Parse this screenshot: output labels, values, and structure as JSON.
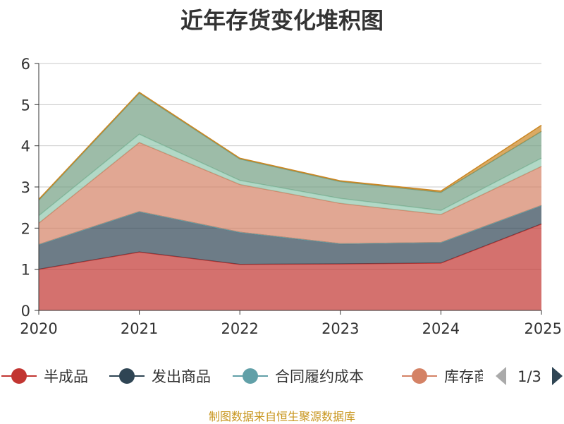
{
  "chart_data": {
    "type": "area",
    "stacked": true,
    "title": "近年存货变化堆积图",
    "xlabel": "",
    "ylabel": "",
    "categories": [
      "2020",
      "2021",
      "2022",
      "2023",
      "2024",
      "2025"
    ],
    "ylim": [
      0,
      6
    ],
    "yticks": [
      "0",
      "1",
      "2",
      "3",
      "4",
      "5",
      "6"
    ],
    "grid": true,
    "legend_position": "bottom",
    "series": [
      {
        "name": "半成品",
        "color": "#c23531",
        "values": [
          1.0,
          1.42,
          1.12,
          1.13,
          1.15,
          2.1
        ]
      },
      {
        "name": "发出商品",
        "color": "#2f4554",
        "values": [
          0.6,
          0.98,
          0.78,
          0.49,
          0.5,
          0.45
        ]
      },
      {
        "name": "合同履约成本",
        "color": "#61a0a8",
        "values": [
          0.0,
          0.0,
          0.0,
          0.0,
          0.0,
          0.0
        ]
      },
      {
        "name": "库存商品",
        "color": "#d48265",
        "values": [
          0.52,
          1.68,
          1.16,
          0.98,
          0.68,
          0.95
        ]
      },
      {
        "name": "",
        "color": "#91c7ae",
        "values": [
          0.18,
          0.2,
          0.1,
          0.12,
          0.1,
          0.2
        ]
      },
      {
        "name": "",
        "color": "#749f83",
        "values": [
          0.38,
          1.0,
          0.52,
          0.41,
          0.44,
          0.65
        ]
      },
      {
        "name": "",
        "color": "#ca8622",
        "values": [
          0.02,
          0.02,
          0.02,
          0.02,
          0.03,
          0.15
        ]
      }
    ],
    "legend": {
      "visible_items": [
        "半成品",
        "发出商品",
        "合同履约成本",
        "库存商"
      ],
      "page": "1/3"
    }
  },
  "source_note": "制图数据来自恒生聚源数据库"
}
